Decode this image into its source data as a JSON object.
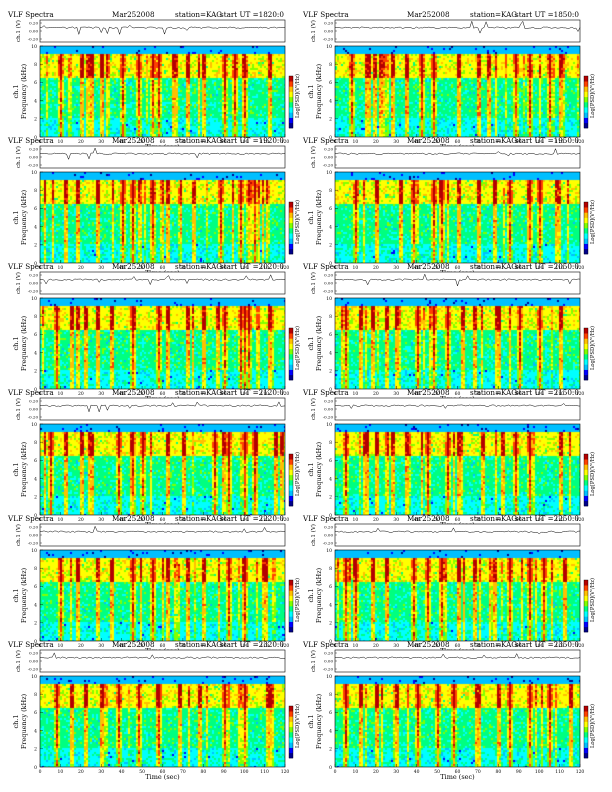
{
  "page": {
    "panel_title": "VLF Spectra",
    "date": "Mar252008",
    "station": "station=KAG",
    "ts_ylabel": "ch.1 (V)",
    "spec_ylabel": "ch.1\nFrequency (kHz)",
    "xlabel": "Time (sec)",
    "cbar_label": "Log[PSD](V²/Hz)"
  },
  "colors": {
    "colormap": [
      "#00008b",
      "#0000ff",
      "#00bfff",
      "#00ffff",
      "#00ff80",
      "#80ff00",
      "#ffff00",
      "#ffbf00",
      "#ff4000",
      "#b40000"
    ],
    "background": "#ffffff",
    "axis": "#000000"
  },
  "chart_data": [
    {
      "type": "heatmap",
      "title": "start UT =1820:0",
      "xlim": [
        0,
        120
      ],
      "ylim": [
        0,
        10
      ],
      "xticks": [
        "0",
        "10",
        "20",
        "30",
        "40",
        "50",
        "60",
        "70",
        "80",
        "90",
        "100",
        "110",
        "120"
      ],
      "yticks": [
        "0",
        "2",
        "4",
        "6",
        "8",
        "10"
      ],
      "ts_yticks": [
        "0.20",
        "0.00",
        "-0.20"
      ],
      "strong_bursts_sec": [
        10,
        20,
        25,
        30,
        40,
        48,
        55,
        58,
        65,
        72,
        80,
        90,
        95,
        100,
        112
      ]
    },
    {
      "type": "heatmap",
      "title": "start UT =1850:0",
      "xlim": [
        0,
        120
      ],
      "ylim": [
        0,
        10
      ],
      "xticks": [
        "0",
        "10",
        "20",
        "30",
        "40",
        "50",
        "60",
        "70",
        "80",
        "90",
        "100",
        "110",
        "120"
      ],
      "yticks": [
        "0",
        "2",
        "4",
        "6",
        "8",
        "10"
      ],
      "ts_yticks": [
        "0.20",
        "0.00",
        "-0.20"
      ],
      "strong_bursts_sec": [
        8,
        15,
        22,
        28,
        35,
        42,
        48,
        60,
        70,
        75,
        88,
        95,
        105,
        110
      ]
    },
    {
      "type": "heatmap",
      "title": "start UT =1920:0",
      "xlim": [
        0,
        120
      ],
      "ylim": [
        0,
        10
      ],
      "xticks": [
        "0",
        "10",
        "20",
        "30",
        "40",
        "50",
        "60",
        "70",
        "80",
        "90",
        "100",
        "110",
        "120"
      ],
      "yticks": [
        "0",
        "2",
        "4",
        "6",
        "8",
        "10"
      ],
      "ts_yticks": [
        "0.20",
        "0.00",
        "-0.20"
      ],
      "strong_bursts_sec": [
        12,
        18,
        28,
        40,
        45,
        55,
        62,
        75,
        88,
        98,
        105
      ]
    },
    {
      "type": "heatmap",
      "title": "start UT =1950:0",
      "xlim": [
        0,
        120
      ],
      "ylim": [
        0,
        10
      ],
      "xticks": [
        "0",
        "10",
        "20",
        "30",
        "40",
        "50",
        "60",
        "70",
        "80",
        "90",
        "100",
        "110",
        "120"
      ],
      "yticks": [
        "0",
        "2",
        "4",
        "6",
        "8",
        "10"
      ],
      "ts_yticks": [
        "0.20",
        "0.00",
        "-0.20"
      ],
      "strong_bursts_sec": [
        10,
        20,
        32,
        38,
        48,
        52,
        60,
        70,
        78,
        85,
        95,
        100,
        108
      ]
    },
    {
      "type": "heatmap",
      "title": "start UT =2020:0",
      "xlim": [
        0,
        120
      ],
      "ylim": [
        0,
        10
      ],
      "xticks": [
        "0",
        "10",
        "20",
        "30",
        "40",
        "50",
        "60",
        "70",
        "80",
        "90",
        "100",
        "110",
        "120"
      ],
      "yticks": [
        "0",
        "2",
        "4",
        "6",
        "8",
        "10"
      ],
      "ts_yticks": [
        "0.20",
        "0.00",
        "-0.20"
      ],
      "strong_bursts_sec": [
        8,
        15,
        22,
        28,
        35,
        45,
        58,
        62,
        72,
        80,
        90,
        98,
        100,
        102,
        112
      ]
    },
    {
      "type": "heatmap",
      "title": "start UT =2050:0",
      "xlim": [
        0,
        120
      ],
      "ylim": [
        0,
        10
      ],
      "xticks": [
        "0",
        "10",
        "20",
        "30",
        "40",
        "50",
        "60",
        "70",
        "80",
        "90",
        "100",
        "110",
        "120"
      ],
      "yticks": [
        "0",
        "2",
        "4",
        "6",
        "8",
        "10"
      ],
      "ts_yticks": [
        "0.20",
        "0.00",
        "-0.20"
      ],
      "strong_bursts_sec": [
        5,
        12,
        18,
        25,
        30,
        40,
        48,
        55,
        62,
        68,
        80,
        90,
        100,
        110
      ]
    },
    {
      "type": "heatmap",
      "title": "start UT =2120:0",
      "xlim": [
        0,
        120
      ],
      "ylim": [
        0,
        10
      ],
      "xticks": [
        "0",
        "10",
        "20",
        "30",
        "40",
        "50",
        "60",
        "70",
        "80",
        "90",
        "100",
        "110",
        "120"
      ],
      "yticks": [
        "0",
        "2",
        "4",
        "6",
        "8",
        "10"
      ],
      "ts_yticks": [
        "0.20",
        "0.00",
        "-0.20"
      ],
      "strong_bursts_sec": [
        5,
        12,
        20,
        25,
        38,
        45,
        50,
        62,
        70,
        85,
        92,
        100,
        105,
        115,
        118
      ]
    },
    {
      "type": "heatmap",
      "title": "start UT =2150:0",
      "xlim": [
        0,
        120
      ],
      "ylim": [
        0,
        10
      ],
      "xticks": [
        "0",
        "10",
        "20",
        "30",
        "40",
        "50",
        "60",
        "70",
        "80",
        "90",
        "100",
        "110",
        "120"
      ],
      "yticks": [
        "0",
        "2",
        "4",
        "6",
        "8",
        "10"
      ],
      "ts_yticks": [
        "0.20",
        "0.00",
        "-0.20"
      ],
      "strong_bursts_sec": [
        5,
        15,
        20,
        28,
        35,
        45,
        55,
        60,
        72,
        82,
        88,
        95,
        110
      ]
    },
    {
      "type": "heatmap",
      "title": "start UT =2220:0",
      "xlim": [
        0,
        120
      ],
      "ylim": [
        0,
        10
      ],
      "xticks": [
        "0",
        "10",
        "20",
        "30",
        "40",
        "50",
        "60",
        "70",
        "80",
        "90",
        "100",
        "110",
        "120"
      ],
      "yticks": [
        "0",
        "2",
        "4",
        "6",
        "8",
        "10"
      ],
      "ts_yticks": [
        "0.20",
        "0.00",
        "-0.20"
      ],
      "strong_bursts_sec": [
        10,
        18,
        28,
        35,
        45,
        55,
        62,
        72,
        80,
        92,
        100,
        110
      ]
    },
    {
      "type": "heatmap",
      "title": "start UT =2250:0",
      "xlim": [
        0,
        120
      ],
      "ylim": [
        0,
        10
      ],
      "xticks": [
        "0",
        "10",
        "20",
        "30",
        "40",
        "50",
        "60",
        "70",
        "80",
        "90",
        "100",
        "110",
        "120"
      ],
      "yticks": [
        "0",
        "2",
        "4",
        "6",
        "8",
        "10"
      ],
      "ts_yticks": [
        "0.20",
        "0.00",
        "-0.20"
      ],
      "strong_bursts_sec": [
        5,
        10,
        18,
        25,
        38,
        45,
        52,
        60,
        68,
        78,
        85,
        95,
        102,
        112
      ]
    },
    {
      "type": "heatmap",
      "title": "start UT =2320:0",
      "xlim": [
        0,
        120
      ],
      "ylim": [
        0,
        10
      ],
      "xticks": [
        "0",
        "10",
        "20",
        "30",
        "40",
        "50",
        "60",
        "70",
        "80",
        "90",
        "100",
        "110",
        "120"
      ],
      "yticks": [
        "0",
        "2",
        "4",
        "6",
        "8",
        "10"
      ],
      "ts_yticks": [
        "0.20",
        "0.00",
        "-0.20"
      ],
      "strong_bursts_sec": [
        8,
        15,
        22,
        30,
        38,
        48,
        58,
        68,
        78,
        90,
        100,
        112
      ]
    },
    {
      "type": "heatmap",
      "title": "start UT =2350:0",
      "xlim": [
        0,
        120
      ],
      "ylim": [
        0,
        10
      ],
      "xticks": [
        "0",
        "10",
        "20",
        "30",
        "40",
        "50",
        "60",
        "70",
        "80",
        "90",
        "100",
        "110",
        "120"
      ],
      "yticks": [
        "0",
        "2",
        "4",
        "6",
        "8",
        "10"
      ],
      "ts_yticks": [
        "0.20",
        "0.00",
        "-0.20"
      ],
      "strong_bursts_sec": [
        5,
        12,
        20,
        30,
        40,
        50,
        58,
        70,
        80,
        85,
        95,
        105,
        115
      ]
    }
  ]
}
